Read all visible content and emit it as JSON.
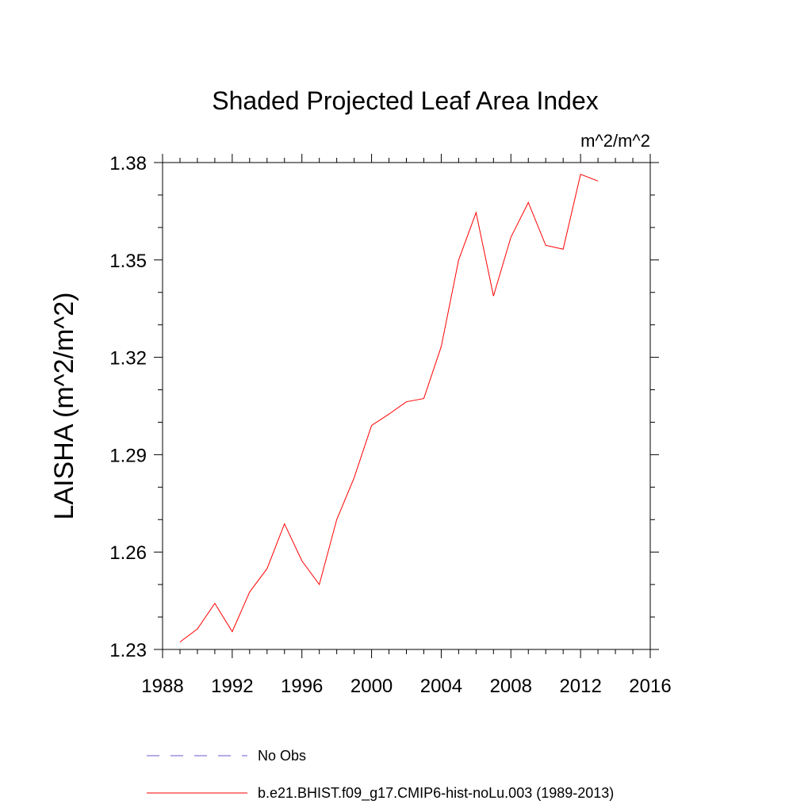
{
  "chart_data": {
    "type": "line",
    "title": "Shaded Projected Leaf Area Index",
    "units": "m^2/m^2",
    "xlabel": "",
    "ylabel": "LAISHA  (m^2/m^2)",
    "xlim": [
      1988,
      2016
    ],
    "ylim": [
      1.23,
      1.38
    ],
    "x_ticks": [
      1988,
      1992,
      1996,
      2000,
      2004,
      2008,
      2012,
      2016
    ],
    "y_ticks": [
      1.23,
      1.26,
      1.29,
      1.32,
      1.35,
      1.38
    ],
    "y_tick_labels": [
      "1.23",
      "1.26",
      "1.29",
      "1.32",
      "1.35",
      "1.38"
    ],
    "x_minor_step": 1,
    "y_minor_step": 0.01,
    "series": [
      {
        "name": "b.e21.BHIST.f09_g17.CMIP6-hist-noLu.003 (1989-2013)",
        "color": "#ff0000",
        "style": "solid",
        "x": [
          1989,
          1990,
          1991,
          1992,
          1993,
          1994,
          1995,
          1996,
          1997,
          1998,
          1999,
          2000,
          2001,
          2002,
          2003,
          2004,
          2005,
          2006,
          2007,
          2008,
          2009,
          2010,
          2011,
          2012,
          2013
        ],
        "values": [
          1.2323,
          1.2363,
          1.2442,
          1.2355,
          1.2477,
          1.2549,
          1.2687,
          1.2573,
          1.25,
          1.27,
          1.2829,
          1.299,
          1.3025,
          1.3063,
          1.3073,
          1.3233,
          1.35,
          1.3646,
          1.3389,
          1.357,
          1.3677,
          1.3545,
          1.3533,
          1.3764,
          1.3743
        ]
      }
    ],
    "legend": [
      {
        "label": "No Obs",
        "color": "#6a5acd",
        "style": "dashed"
      },
      {
        "label": "b.e21.BHIST.f09_g17.CMIP6-hist-noLu.003 (1989-2013)",
        "color": "#ff0000",
        "style": "solid"
      }
    ]
  }
}
